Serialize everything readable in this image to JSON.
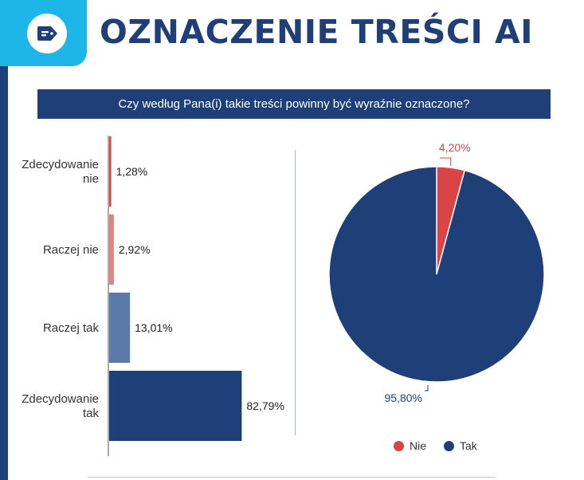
{
  "header": {
    "title": "OZNACZENIE TREŚCI AI",
    "icon": "tag-icon"
  },
  "question": "Czy według Pana(i) takie treści powinny być wyraźnie oznaczone?",
  "colors": {
    "navy": "#1e3f78",
    "cyan": "#1eb5e8",
    "red": "#d94545",
    "light_red": "#e58080",
    "steel_blue": "#5a78a8"
  },
  "chart_data": [
    {
      "type": "bar",
      "orientation": "horizontal",
      "categories": [
        [
          "Zdecydowanie",
          "nie"
        ],
        [
          "Raczej nie"
        ],
        [
          "Raczej tak"
        ],
        [
          "Zdecydowanie",
          "tak"
        ]
      ],
      "values": [
        1.28,
        2.92,
        13.01,
        82.79
      ],
      "value_labels": [
        "1,28%",
        "2,92%",
        "13,01%",
        "82,79%"
      ],
      "bar_colors": [
        "#d94545",
        "#e58080",
        "#5a78a8",
        "#1e3f78"
      ],
      "xlim": [
        0,
        100
      ]
    },
    {
      "type": "pie",
      "labels": [
        "Nie",
        "Tak"
      ],
      "values": [
        4.2,
        95.8
      ],
      "value_labels": [
        "4,20%",
        "95,80%"
      ],
      "colors": [
        "#d94545",
        "#1e3f78"
      ],
      "legend": "bottom"
    }
  ]
}
